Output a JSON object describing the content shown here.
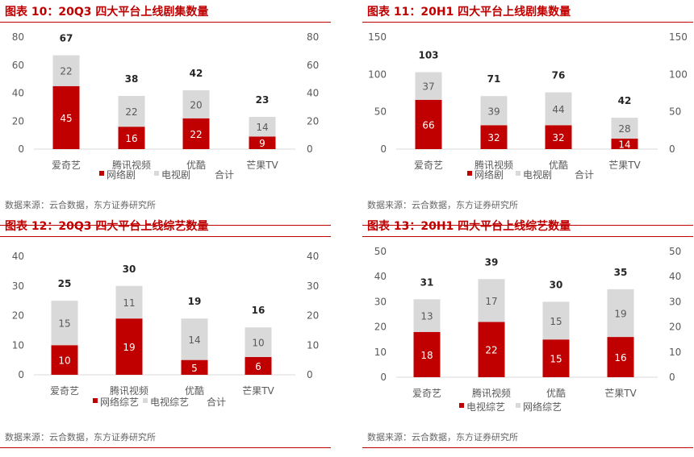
{
  "colors": {
    "primary": "#c00000",
    "secondary": "#d9d9d9",
    "text": "#595959"
  },
  "panels": [
    {
      "title": "图表 10：20Q3 四大平台上线剧集数量",
      "source": "数据来源：云合数据，东方证券研究所",
      "chart_data": {
        "type": "bar",
        "stacked": true,
        "categories": [
          "爱奇艺",
          "腾讯视频",
          "优酷",
          "芒果TV"
        ],
        "series": [
          {
            "name": "网络剧",
            "values": [
              45,
              16,
              22,
              9
            ]
          },
          {
            "name": "电视剧",
            "values": [
              22,
              22,
              20,
              14
            ]
          }
        ],
        "totals": {
          "name": "合计",
          "values": [
            67,
            38,
            42,
            23
          ]
        },
        "yticks": [
          0,
          20,
          40,
          60,
          80
        ],
        "ylim": [
          0,
          80
        ],
        "grid": false,
        "legend": "bottom"
      }
    },
    {
      "title": "图表 11：20H1 四大平台上线剧集数量",
      "source": "数据来源：云合数据，东方证券研究所",
      "chart_data": {
        "type": "bar",
        "stacked": true,
        "categories": [
          "爱奇艺",
          "腾讯视频",
          "优酷",
          "芒果TV"
        ],
        "series": [
          {
            "name": "网络剧",
            "values": [
              66,
              32,
              32,
              14
            ]
          },
          {
            "name": "电视剧",
            "values": [
              37,
              39,
              44,
              28
            ]
          }
        ],
        "totals": {
          "name": "合计",
          "values": [
            103,
            71,
            76,
            42
          ]
        },
        "yticks": [
          0,
          50,
          100,
          150
        ],
        "ylim": [
          0,
          150
        ],
        "grid": false,
        "legend": "bottom"
      }
    },
    {
      "title": "图表 12：20Q3 四大平台上线综艺数量",
      "source": "数据来源：云合数据，东方证券研究所",
      "chart_data": {
        "type": "bar",
        "stacked": true,
        "categories": [
          "爱奇艺",
          "腾讯视频",
          "优酷",
          "芒果TV"
        ],
        "series": [
          {
            "name": "网络综艺",
            "values": [
              10,
              19,
              5,
              6
            ]
          },
          {
            "name": "电视综艺",
            "values": [
              15,
              11,
              14,
              10
            ]
          }
        ],
        "totals": {
          "name": "合计",
          "values": [
            25,
            30,
            19,
            16
          ]
        },
        "yticks": [
          0,
          10,
          20,
          30,
          40
        ],
        "ylim": [
          0,
          40
        ],
        "grid": false,
        "legend": "bottom"
      }
    },
    {
      "title": "图表 13：20H1 四大平台上线综艺数量",
      "source": "数据来源：云合数据，东方证券研究所",
      "chart_data": {
        "type": "bar",
        "stacked": true,
        "categories": [
          "爱奇艺",
          "腾讯视频",
          "优酷",
          "芒果TV"
        ],
        "series": [
          {
            "name": "电视综艺",
            "values": [
              18,
              22,
              15,
              16
            ]
          },
          {
            "name": "网络综艺",
            "values": [
              13,
              17,
              15,
              19
            ]
          }
        ],
        "totals": {
          "name": "",
          "values": [
            31,
            39,
            30,
            35
          ]
        },
        "yticks": [
          0,
          10,
          20,
          30,
          40,
          50
        ],
        "ylim": [
          0,
          50
        ],
        "grid": false,
        "legend": "bottom"
      }
    }
  ]
}
